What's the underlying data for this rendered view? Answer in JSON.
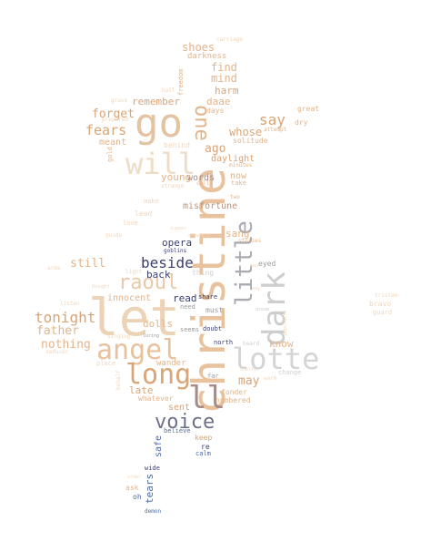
{
  "palette": {
    "peach": "#e8c29d",
    "tan": "#d9a577",
    "light_peach": "#f0d6bc",
    "pale": "#f3e4d3",
    "brown": "#b8977f",
    "mauve": "#a88a86",
    "gray": "#9a9a9a",
    "light_gray": "#cfcfcf",
    "navy": "#3a3f6e",
    "slate": "#6d7089",
    "blue": "#4a6aa6",
    "steel": "#5a6e8f"
  },
  "words": [
    {
      "text": "christine",
      "color": "#e8c29d"
    },
    {
      "text": "let",
      "color": "#edd3b6"
    },
    {
      "text": "go",
      "color": "#e4c3a3"
    },
    {
      "text": "angel",
      "color": "#e8c29d"
    },
    {
      "text": "long",
      "color": "#d9a577"
    },
    {
      "text": "lotte",
      "color": "#d4d4d4"
    },
    {
      "text": "dark",
      "color": "#cdcdcd"
    },
    {
      "text": "little",
      "color": "#a9aab3"
    },
    {
      "text": "ll",
      "color": "#a88a86"
    },
    {
      "text": "will",
      "color": "#efdcc6"
    },
    {
      "text": "voice",
      "color": "#6d7089"
    },
    {
      "text": "raoul",
      "color": "#e9c9aa"
    },
    {
      "text": "one",
      "color": "#e3b48a"
    },
    {
      "text": "beside",
      "color": "#3a3f6e"
    },
    {
      "text": "tonight",
      "color": "#d9a577"
    },
    {
      "text": "say",
      "color": "#d9a577"
    },
    {
      "text": "fears",
      "color": "#d9a577"
    },
    {
      "text": "forget",
      "color": "#d9a577"
    },
    {
      "text": "father",
      "color": "#e3b48a"
    },
    {
      "text": "nothing",
      "color": "#e3b48a"
    },
    {
      "text": "still",
      "color": "#e3b48a"
    },
    {
      "text": "may",
      "color": "#d9a577"
    },
    {
      "text": "shoes",
      "color": "#e3b48a"
    },
    {
      "text": "find",
      "color": "#e3b48a"
    },
    {
      "text": "mind",
      "color": "#e3b48a"
    },
    {
      "text": "ago",
      "color": "#d9a577"
    },
    {
      "text": "whose",
      "color": "#d9a577"
    },
    {
      "text": "remember",
      "color": "#d9a577"
    },
    {
      "text": "harm",
      "color": "#d9a577"
    },
    {
      "text": "daae",
      "color": "#e3b48a"
    },
    {
      "text": "young",
      "color": "#e3b48a"
    },
    {
      "text": "meant",
      "color": "#e3b48a"
    },
    {
      "text": "now",
      "color": "#e3b48a"
    },
    {
      "text": "words",
      "color": "#a88a86"
    },
    {
      "text": "daylight",
      "color": "#d9a577"
    },
    {
      "text": "misfortune",
      "color": "#b8977f"
    },
    {
      "text": "sang",
      "color": "#e3b48a"
    },
    {
      "text": "opera",
      "color": "#3a3f6e"
    },
    {
      "text": "back",
      "color": "#3a3f6e"
    },
    {
      "text": "read",
      "color": "#3a3f6e"
    },
    {
      "text": "innocent",
      "color": "#e3b48a"
    },
    {
      "text": "dolls",
      "color": "#e3b48a"
    },
    {
      "text": "know",
      "color": "#e3b48a"
    },
    {
      "text": "late",
      "color": "#d9a577"
    },
    {
      "text": "sent",
      "color": "#d9a577"
    },
    {
      "text": "whatever",
      "color": "#e3b48a"
    },
    {
      "text": "wander",
      "color": "#e3b48a"
    },
    {
      "text": "fonder",
      "color": "#e3b48a"
    },
    {
      "text": "numbered",
      "color": "#e3b48a"
    },
    {
      "text": "tears",
      "color": "#4a6aa6"
    },
    {
      "text": "safe",
      "color": "#4a6aa6"
    },
    {
      "text": "darkness",
      "color": "#e3b48a"
    },
    {
      "text": "carriage",
      "color": "#f0d6bc"
    },
    {
      "text": "freedom",
      "color": "#e3b48a"
    },
    {
      "text": "grave",
      "color": "#f0d6bc"
    },
    {
      "text": "prepared",
      "color": "#f0d6bc"
    },
    {
      "text": "hall",
      "color": "#f0d6bc"
    },
    {
      "text": "days",
      "color": "#e3b48a"
    },
    {
      "text": "great",
      "color": "#e3b48a"
    },
    {
      "text": "dry",
      "color": "#e3b48a"
    },
    {
      "text": "attempt",
      "color": "#e3b48a"
    },
    {
      "text": "solitude",
      "color": "#e3b48a"
    },
    {
      "text": "minutes",
      "color": "#e3b48a"
    },
    {
      "text": "take",
      "color": "#e3b48a"
    },
    {
      "text": "calls",
      "color": "#e3b48a"
    },
    {
      "text": "two",
      "color": "#e3b48a"
    },
    {
      "text": "behind",
      "color": "#f0d6bc"
    },
    {
      "text": "gold",
      "color": "#e3b48a"
    },
    {
      "text": "strange",
      "color": "#f0d6bc"
    },
    {
      "text": "make",
      "color": "#f0d6bc"
    },
    {
      "text": "lead",
      "color": "#f0d6bc"
    },
    {
      "text": "love",
      "color": "#f0d6bc"
    },
    {
      "text": "guide",
      "color": "#f0d6bc"
    },
    {
      "text": "supper",
      "color": "#f0d6bc"
    },
    {
      "text": "anywhere",
      "color": "#f0d6bc"
    },
    {
      "text": "goblins",
      "color": "#3a3f6e"
    },
    {
      "text": "stories",
      "color": "#e3b48a"
    },
    {
      "text": "eyed",
      "color": "#9a9a9a"
    },
    {
      "text": "arms",
      "color": "#f0d6bc"
    },
    {
      "text": "light",
      "color": "#f0d6bc"
    },
    {
      "text": "thing",
      "color": "#cfcfcf"
    },
    {
      "text": "thought",
      "color": "#f0d6bc"
    },
    {
      "text": "share",
      "color": "#3a3f6e"
    },
    {
      "text": "need",
      "color": "#9a9a9a"
    },
    {
      "text": "must",
      "color": "#9a9a9a"
    },
    {
      "text": "seems",
      "color": "#9a9a9a"
    },
    {
      "text": "dream",
      "color": "#cfcfcf"
    },
    {
      "text": "listen",
      "color": "#f0d6bc"
    },
    {
      "text": "wait",
      "color": "#f0d6bc"
    },
    {
      "text": "singing",
      "color": "#f0d6bc"
    },
    {
      "text": "luring",
      "color": "#9a9a9a"
    },
    {
      "text": "north",
      "color": "#3a3f6e"
    },
    {
      "text": "heard",
      "color": "#cfcfcf"
    },
    {
      "text": "seducer",
      "color": "#f0d6bc"
    },
    {
      "text": "place",
      "color": "#f0d6bc"
    },
    {
      "text": "populaire",
      "color": "#f0d6bc"
    },
    {
      "text": "tristan",
      "color": "#f0d6bc"
    },
    {
      "text": "bravo",
      "color": "#f0d6bc"
    },
    {
      "text": "guard",
      "color": "#f0d6bc"
    },
    {
      "text": "shelter",
      "color": "#f0d6bc"
    },
    {
      "text": "change",
      "color": "#cfcfcf"
    },
    {
      "text": "warm",
      "color": "#f0d6bc"
    },
    {
      "text": "behalf",
      "color": "#f0d6bc"
    },
    {
      "text": "far",
      "color": "#9a9a9a"
    },
    {
      "text": "believe",
      "color": "#5a6e8f"
    },
    {
      "text": "keep",
      "color": "#d9a577"
    },
    {
      "text": "re",
      "color": "#3a3f6e"
    },
    {
      "text": "calm",
      "color": "#4a6aa6"
    },
    {
      "text": "wide",
      "color": "#3a3f6e"
    },
    {
      "text": "order",
      "color": "#f0d6bc"
    },
    {
      "text": "ask",
      "color": "#e3b48a"
    },
    {
      "text": "oh",
      "color": "#4a6aa6"
    },
    {
      "text": "demon",
      "color": "#4a6aa6"
    },
    {
      "text": "doubt",
      "color": "#3a3f6e"
    },
    {
      "text": "man",
      "color": "#f0d6bc"
    },
    {
      "text": "way",
      "color": "#f0d6bc"
    }
  ]
}
